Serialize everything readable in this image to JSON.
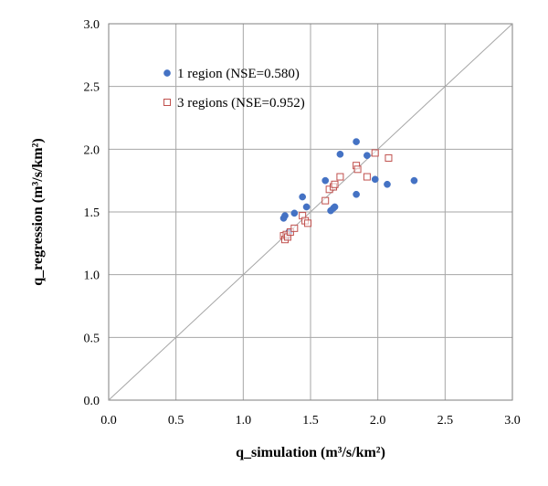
{
  "chart_data": {
    "type": "scatter",
    "xlabel": "q_simulation (m³/s/km²)",
    "ylabel": "q_regression (m³/s/km²)",
    "xlim": [
      0,
      3
    ],
    "ylim": [
      0,
      3
    ],
    "xticks": [
      "0.0",
      "0.5",
      "1.0",
      "1.5",
      "2.0",
      "2.5",
      "3.0"
    ],
    "yticks": [
      "0.0",
      "0.5",
      "1.0",
      "1.5",
      "2.0",
      "2.5",
      "3.0"
    ],
    "grid": true,
    "reference_line": "1:1",
    "legend_position": "top-left",
    "series": [
      {
        "name": "1 region  (NSE=0.580)",
        "marker": "circle",
        "color": "#4472c4",
        "points": [
          [
            1.3,
            1.45
          ],
          [
            1.31,
            1.47
          ],
          [
            1.32,
            1.3
          ],
          [
            1.34,
            1.34
          ],
          [
            1.38,
            1.49
          ],
          [
            1.44,
            1.62
          ],
          [
            1.47,
            1.54
          ],
          [
            1.61,
            1.75
          ],
          [
            1.65,
            1.51
          ],
          [
            1.67,
            1.53
          ],
          [
            1.68,
            1.54
          ],
          [
            1.72,
            1.96
          ],
          [
            1.84,
            2.06
          ],
          [
            1.84,
            1.64
          ],
          [
            1.92,
            1.95
          ],
          [
            1.98,
            1.76
          ],
          [
            2.07,
            1.72
          ],
          [
            2.27,
            1.75
          ]
        ]
      },
      {
        "name": "3 regions (NSE=0.952)",
        "marker": "square-open",
        "color": "#c0504d",
        "points": [
          [
            1.3,
            1.31
          ],
          [
            1.31,
            1.28
          ],
          [
            1.32,
            1.32
          ],
          [
            1.33,
            1.3
          ],
          [
            1.35,
            1.34
          ],
          [
            1.38,
            1.37
          ],
          [
            1.44,
            1.47
          ],
          [
            1.46,
            1.43
          ],
          [
            1.48,
            1.41
          ],
          [
            1.61,
            1.59
          ],
          [
            1.64,
            1.68
          ],
          [
            1.67,
            1.7
          ],
          [
            1.68,
            1.72
          ],
          [
            1.72,
            1.78
          ],
          [
            1.84,
            1.87
          ],
          [
            1.85,
            1.84
          ],
          [
            1.92,
            1.78
          ],
          [
            1.98,
            1.97
          ],
          [
            2.08,
            1.93
          ]
        ]
      }
    ]
  }
}
